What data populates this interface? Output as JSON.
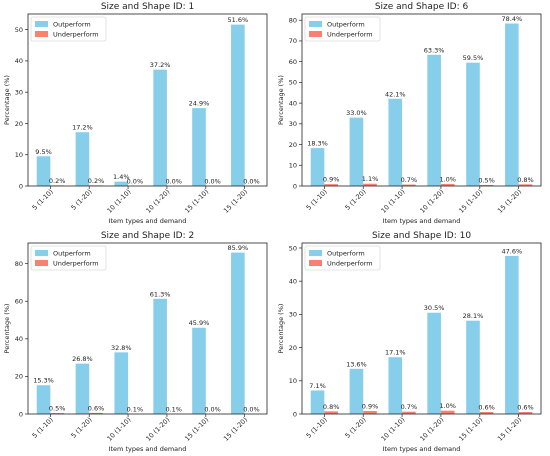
{
  "colors": {
    "outperform": "#87ceeb",
    "underperform": "#fa8072"
  },
  "chart_data": [
    {
      "type": "bar",
      "title": "Size and Shape ID: 1",
      "xlabel": "Item types and demand",
      "ylabel": "Percentage (%)",
      "categories": [
        "5 (1-10)",
        "5 (1-20)",
        "10 (1-10)",
        "10 (1-20)",
        "15 (1-10)",
        "15 (1-20)"
      ],
      "series": [
        {
          "name": "Outperform",
          "values": [
            9.5,
            17.2,
            1.4,
            37.2,
            24.9,
            51.6
          ],
          "labels": [
            "9.5%",
            "17.2%",
            "1.4%",
            "37.2%",
            "24.9%",
            "51.6%"
          ]
        },
        {
          "name": "Underperform",
          "values": [
            0.2,
            0.2,
            0.0,
            0.0,
            0.0,
            0.0
          ],
          "labels": [
            "0.2%",
            "0.2%",
            "0.0%",
            "0.0%",
            "0.0%",
            "0.0%"
          ]
        }
      ],
      "ylim": [
        0,
        55
      ],
      "yticks": [
        0,
        10,
        20,
        30,
        40,
        50
      ],
      "legend": "top-left",
      "grid": false
    },
    {
      "type": "bar",
      "title": "Size and Shape ID: 6",
      "xlabel": "Item types and demand",
      "ylabel": "Percentage (%)",
      "categories": [
        "5 (1-10)",
        "5 (1-20)",
        "10 (1-10)",
        "10 (1-20)",
        "15 (1-10)",
        "15 (1-20)"
      ],
      "series": [
        {
          "name": "Outperform",
          "values": [
            18.3,
            33.0,
            42.1,
            63.3,
            59.5,
            78.4
          ],
          "labels": [
            "18.3%",
            "33.0%",
            "42.1%",
            "63.3%",
            "59.5%",
            "78.4%"
          ]
        },
        {
          "name": "Underperform",
          "values": [
            0.9,
            1.1,
            0.7,
            1.0,
            0.5,
            0.8
          ],
          "labels": [
            "0.9%",
            "1.1%",
            "0.7%",
            "1.0%",
            "0.5%",
            "0.8%"
          ]
        }
      ],
      "ylim": [
        0,
        83
      ],
      "yticks": [
        0,
        10,
        20,
        30,
        40,
        50,
        60,
        70,
        80
      ],
      "legend": "top-left",
      "grid": false
    },
    {
      "type": "bar",
      "title": "Size and Shape ID: 2",
      "xlabel": "Item types and demand",
      "ylabel": "Percentage (%)",
      "categories": [
        "5 (1-10)",
        "5 (1-20)",
        "10 (1-10)",
        "10 (1-20)",
        "15 (1-10)",
        "15 (1-20)"
      ],
      "series": [
        {
          "name": "Outperform",
          "values": [
            15.3,
            26.8,
            32.8,
            61.3,
            45.9,
            85.9
          ],
          "labels": [
            "15.3%",
            "26.8%",
            "32.8%",
            "61.3%",
            "45.9%",
            "85.9%"
          ]
        },
        {
          "name": "Underperform",
          "values": [
            0.5,
            0.6,
            0.1,
            0.1,
            0.0,
            0.0
          ],
          "labels": [
            "0.5%",
            "0.6%",
            "0.1%",
            "0.1%",
            "0.0%",
            "0.0%"
          ]
        }
      ],
      "ylim": [
        0,
        91
      ],
      "yticks": [
        0,
        20,
        40,
        60,
        80
      ],
      "legend": "top-left",
      "grid": false
    },
    {
      "type": "bar",
      "title": "Size and Shape ID: 10",
      "xlabel": "Item types and demand",
      "ylabel": "Percentage (%)",
      "categories": [
        "5 (1-10)",
        "5 (1-20)",
        "10 (1-10)",
        "10 (1-20)",
        "15 (1-10)",
        "15 (1-20)"
      ],
      "series": [
        {
          "name": "Outperform",
          "values": [
            7.1,
            13.6,
            17.1,
            30.5,
            28.1,
            47.6
          ],
          "labels": [
            "7.1%",
            "13.6%",
            "17.1%",
            "30.5%",
            "28.1%",
            "47.6%"
          ]
        },
        {
          "name": "Underperform",
          "values": [
            0.8,
            0.9,
            0.7,
            1.0,
            0.6,
            0.6
          ],
          "labels": [
            "0.8%",
            "0.9%",
            "0.7%",
            "1.0%",
            "0.6%",
            "0.6%"
          ]
        }
      ],
      "ylim": [
        0,
        51.5
      ],
      "yticks": [
        0,
        10,
        20,
        30,
        40,
        50
      ],
      "legend": "top-left",
      "grid": false
    }
  ]
}
